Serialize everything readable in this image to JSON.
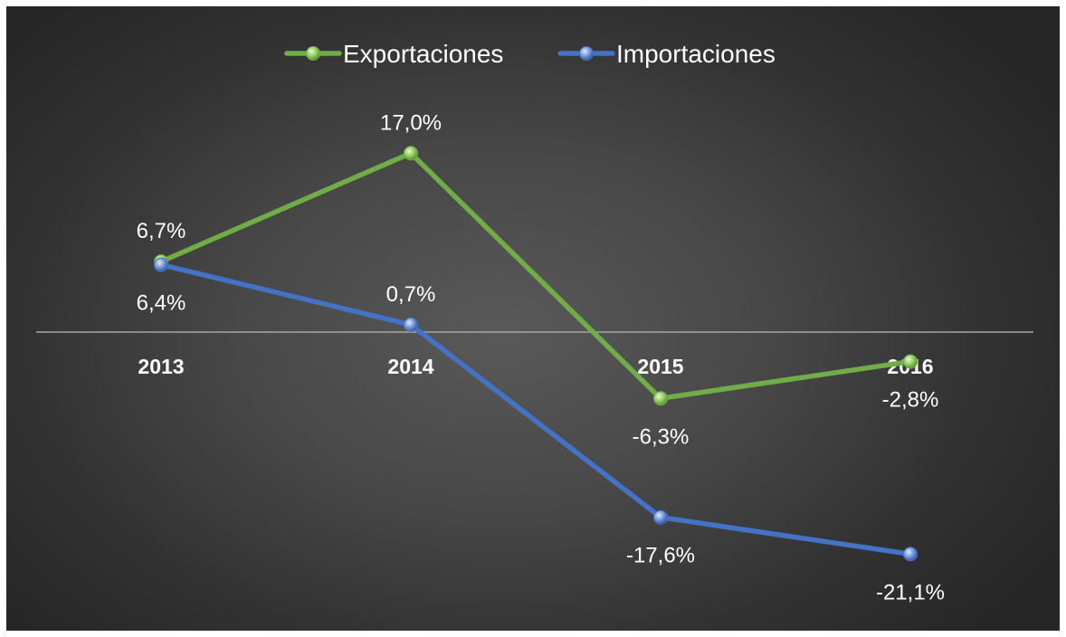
{
  "chart_data": {
    "type": "line",
    "categories": [
      "2013",
      "2014",
      "2015",
      "2016"
    ],
    "series": [
      {
        "name": "Exportaciones",
        "values": [
          6.7,
          17.0,
          -6.3,
          -2.8
        ],
        "labels": [
          "6,7%",
          "17,0%",
          "-6,3%",
          "-2,8%"
        ],
        "color": "#70ad47"
      },
      {
        "name": "Importaciones",
        "values": [
          6.4,
          0.7,
          -17.6,
          -21.1
        ],
        "labels": [
          "6,4%",
          "0,7%",
          "-17,6%",
          "-21,1%"
        ],
        "color": "#4472c4"
      }
    ],
    "ylim": [
      -23,
      23
    ],
    "grid": false,
    "legend_position": "top",
    "background": "#404040",
    "axis_color": "#a6a6a6"
  }
}
